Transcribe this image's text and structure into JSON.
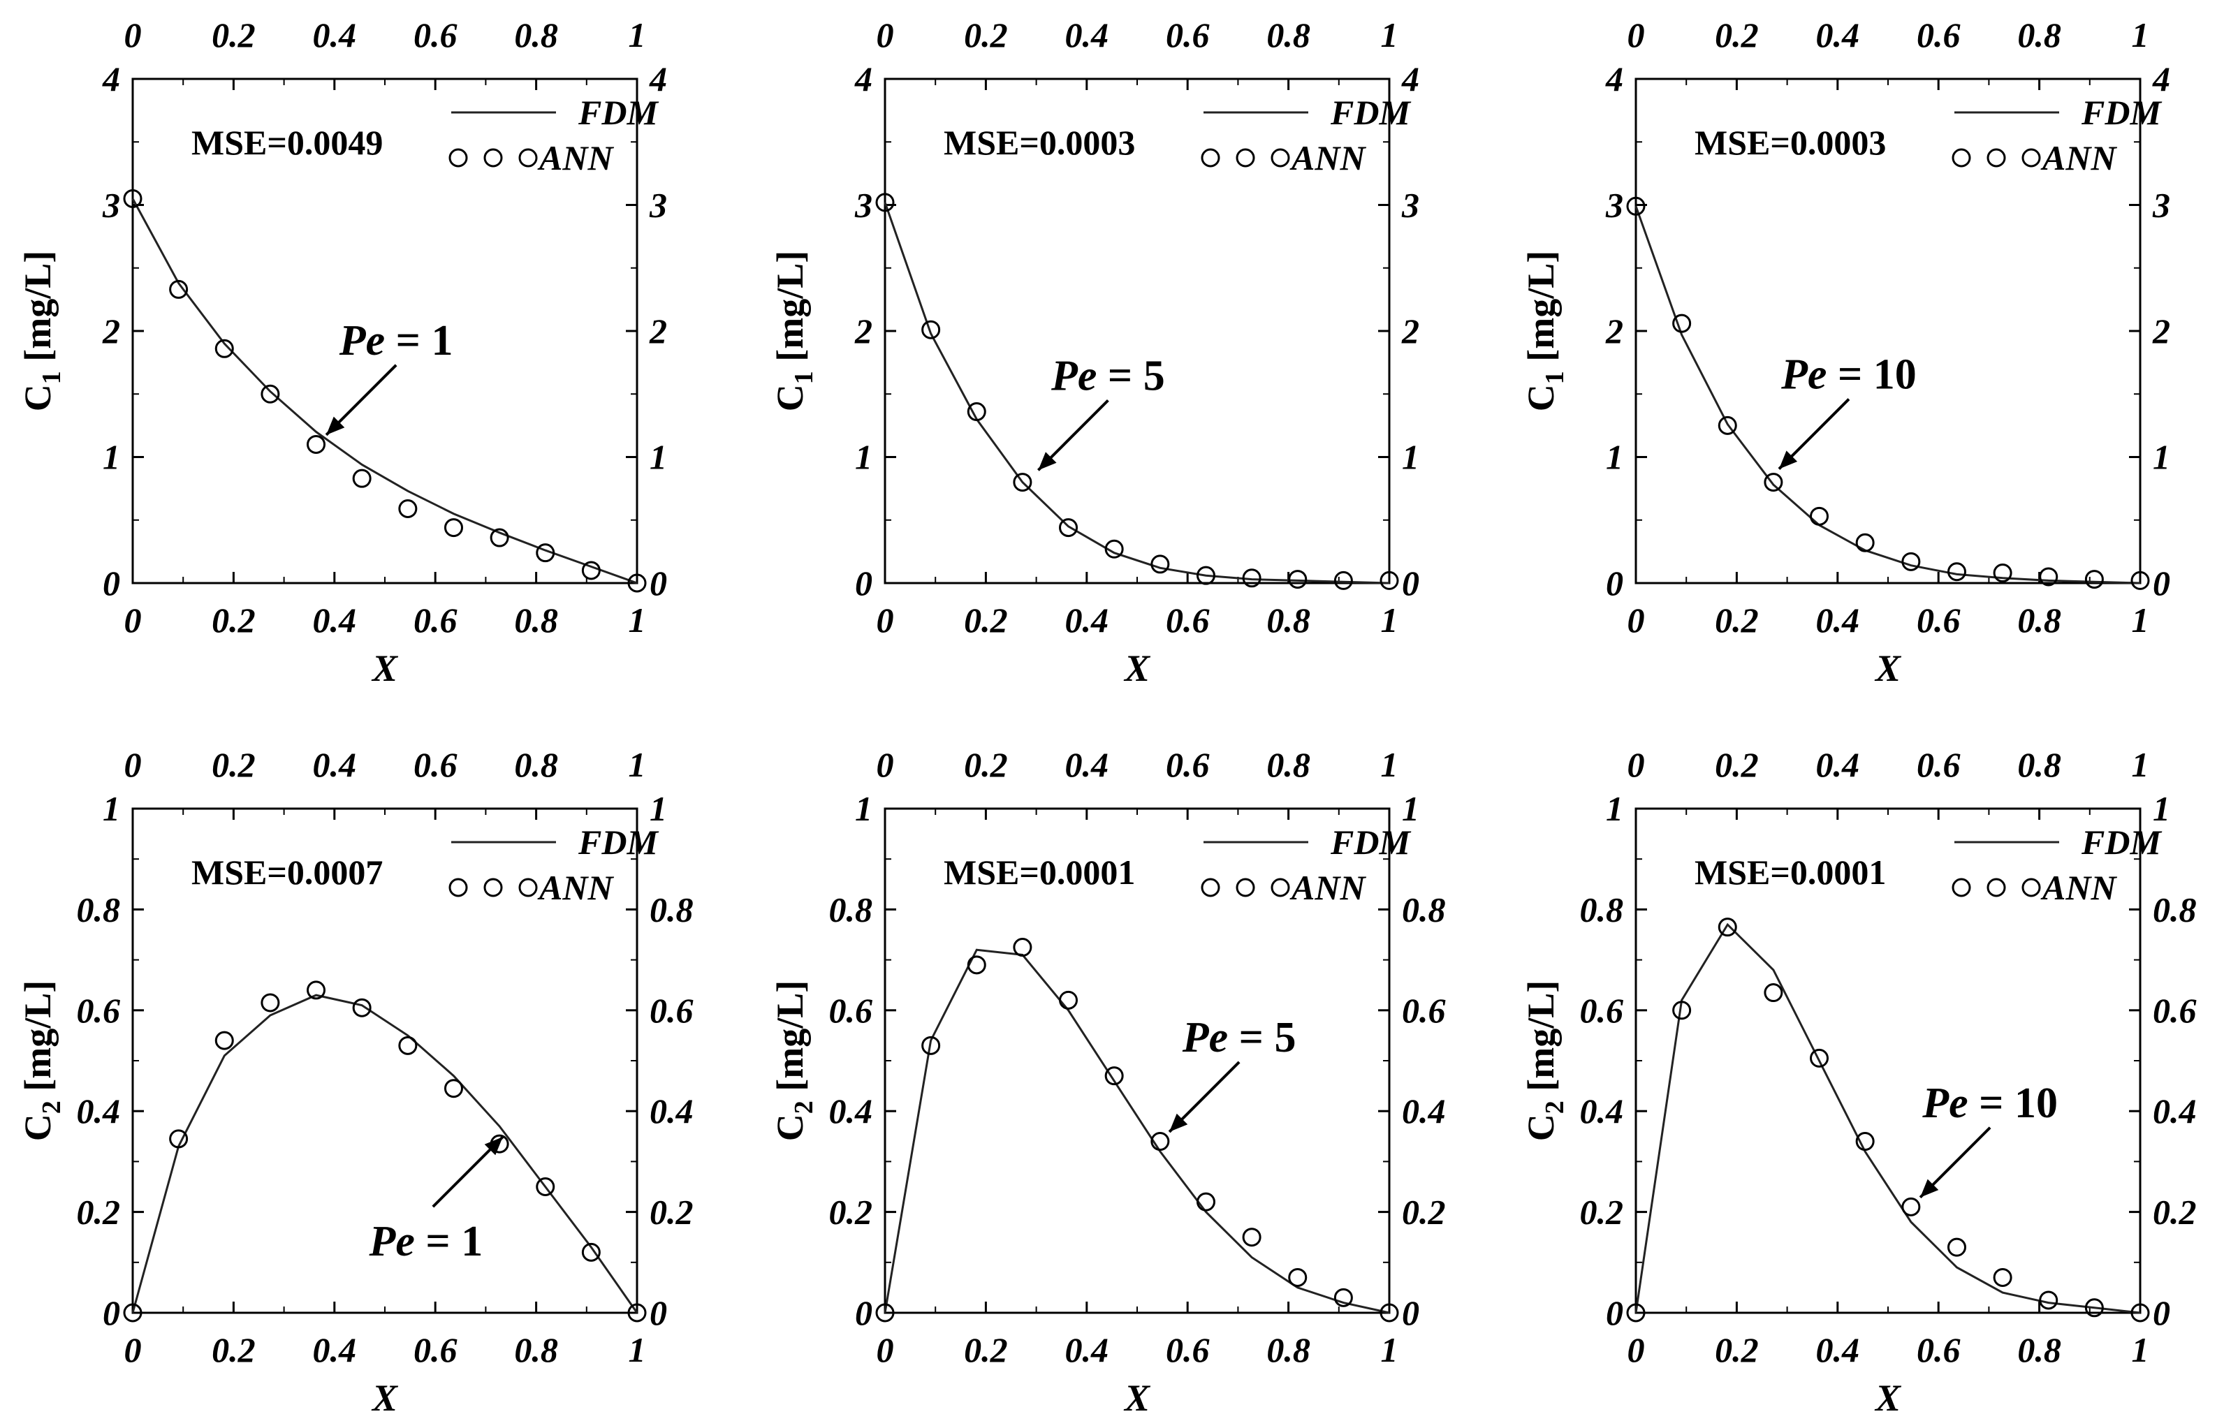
{
  "chart_data": [
    {
      "type": "line",
      "ylabel_main": "C",
      "ylabel_sub": "1",
      "ylabel_unit": " [mg/L]",
      "xlabel": "X",
      "xlim": [
        0,
        1
      ],
      "ylim": [
        0,
        4
      ],
      "xticks": [
        "0",
        "0.2",
        "0.4",
        "0.6",
        "0.8",
        "1"
      ],
      "yticks": [
        "0",
        "1",
        "2",
        "3",
        "4"
      ],
      "mse": "MSE=0.0049",
      "legend": {
        "fdm": "FDM",
        "ann": "ANN"
      },
      "annotation": {
        "pe": "Pe",
        "eq": " = 1",
        "x": 0.37,
        "y": 1.12
      },
      "series": [
        {
          "name": "FDM",
          "style": "line",
          "x": [
            0,
            0.0909,
            0.1818,
            0.2727,
            0.3636,
            0.4545,
            0.5455,
            0.6364,
            0.7273,
            0.8182,
            0.9091,
            1
          ],
          "values": [
            3.05,
            2.38,
            1.9,
            1.52,
            1.2,
            0.94,
            0.73,
            0.55,
            0.4,
            0.26,
            0.13,
            0.0
          ]
        },
        {
          "name": "ANN",
          "style": "marker",
          "x": [
            0,
            0.0909,
            0.1818,
            0.2727,
            0.3636,
            0.4545,
            0.5455,
            0.6364,
            0.7273,
            0.8182,
            0.9091,
            1
          ],
          "values": [
            3.05,
            2.33,
            1.86,
            1.5,
            1.1,
            0.83,
            0.59,
            0.44,
            0.36,
            0.24,
            0.1,
            0.0
          ]
        }
      ]
    },
    {
      "type": "line",
      "ylabel_main": "C",
      "ylabel_sub": "1",
      "ylabel_unit": " [mg/L]",
      "xlabel": "X",
      "xlim": [
        0,
        1
      ],
      "ylim": [
        0,
        4
      ],
      "xticks": [
        "0",
        "0.2",
        "0.4",
        "0.6",
        "0.8",
        "1"
      ],
      "yticks": [
        "0",
        "1",
        "2",
        "3",
        "4"
      ],
      "mse": "MSE=0.0003",
      "legend": {
        "fdm": "FDM",
        "ann": "ANN"
      },
      "annotation": {
        "pe": "Pe",
        "eq": " = 5",
        "x": 0.29,
        "y": 0.84
      },
      "series": [
        {
          "name": "FDM",
          "style": "line",
          "x": [
            0,
            0.0909,
            0.1818,
            0.2727,
            0.3636,
            0.4545,
            0.5455,
            0.6364,
            0.7273,
            0.8182,
            0.9091,
            1
          ],
          "values": [
            3.02,
            1.98,
            1.3,
            0.8,
            0.45,
            0.24,
            0.12,
            0.06,
            0.03,
            0.02,
            0.01,
            0.0
          ]
        },
        {
          "name": "ANN",
          "style": "marker",
          "x": [
            0,
            0.0909,
            0.1818,
            0.2727,
            0.3636,
            0.4545,
            0.5455,
            0.6364,
            0.7273,
            0.8182,
            0.9091,
            1
          ],
          "values": [
            3.02,
            2.01,
            1.36,
            0.8,
            0.44,
            0.27,
            0.15,
            0.06,
            0.04,
            0.03,
            0.02,
            0.02
          ]
        }
      ]
    },
    {
      "type": "line",
      "ylabel_main": "C",
      "ylabel_sub": "1",
      "ylabel_unit": " [mg/L]",
      "xlabel": "X",
      "xlim": [
        0,
        1
      ],
      "ylim": [
        0,
        4
      ],
      "xticks": [
        "0",
        "0.2",
        "0.4",
        "0.6",
        "0.8",
        "1"
      ],
      "yticks": [
        "0",
        "1",
        "2",
        "3",
        "4"
      ],
      "mse": "MSE=0.0003",
      "legend": {
        "fdm": "FDM",
        "ann": "ANN"
      },
      "annotation": {
        "pe": "Pe",
        "eq": " = 10",
        "x": 0.27,
        "y": 0.85
      },
      "series": [
        {
          "name": "FDM",
          "style": "line",
          "x": [
            0,
            0.0909,
            0.1818,
            0.2727,
            0.3636,
            0.4545,
            0.5455,
            0.6364,
            0.7273,
            0.8182,
            0.9091,
            1
          ],
          "values": [
            2.99,
            1.97,
            1.26,
            0.78,
            0.46,
            0.26,
            0.14,
            0.07,
            0.04,
            0.02,
            0.01,
            0.0
          ]
        },
        {
          "name": "ANN",
          "style": "marker",
          "x": [
            0,
            0.0909,
            0.1818,
            0.2727,
            0.3636,
            0.4545,
            0.5455,
            0.6364,
            0.7273,
            0.8182,
            0.9091,
            1
          ],
          "values": [
            2.99,
            2.06,
            1.25,
            0.8,
            0.53,
            0.32,
            0.17,
            0.09,
            0.08,
            0.05,
            0.03,
            0.02
          ]
        }
      ]
    },
    {
      "type": "line",
      "ylabel_main": "C",
      "ylabel_sub": "2",
      "ylabel_unit": " [mg/L]",
      "xlabel": "X",
      "xlim": [
        0,
        1
      ],
      "ylim": [
        0,
        1
      ],
      "xticks": [
        "0",
        "0.2",
        "0.4",
        "0.6",
        "0.8",
        "1"
      ],
      "yticks": [
        "0",
        "0.2",
        "0.4",
        "0.6",
        "0.8",
        "1"
      ],
      "mse": "MSE=0.0007",
      "legend": {
        "fdm": "FDM",
        "ann": "ANN"
      },
      "annotation": {
        "pe": "Pe",
        "eq": " = 1",
        "x": 0.72,
        "y": 0.335,
        "below": true
      },
      "series": [
        {
          "name": "FDM",
          "style": "line",
          "x": [
            0,
            0.0909,
            0.1818,
            0.2727,
            0.3636,
            0.4545,
            0.5455,
            0.6364,
            0.7273,
            0.8182,
            0.9091,
            1
          ],
          "values": [
            0.0,
            0.33,
            0.51,
            0.59,
            0.63,
            0.61,
            0.55,
            0.47,
            0.37,
            0.25,
            0.13,
            0.0
          ]
        },
        {
          "name": "ANN",
          "style": "marker",
          "x": [
            0,
            0.0909,
            0.1818,
            0.2727,
            0.3636,
            0.4545,
            0.5455,
            0.6364,
            0.7273,
            0.8182,
            0.9091,
            1
          ],
          "values": [
            0.0,
            0.345,
            0.54,
            0.615,
            0.64,
            0.605,
            0.53,
            0.445,
            0.335,
            0.25,
            0.12,
            0.0
          ]
        }
      ]
    },
    {
      "type": "line",
      "ylabel_main": "C",
      "ylabel_sub": "2",
      "ylabel_unit": " [mg/L]",
      "xlabel": "X",
      "xlim": [
        0,
        1
      ],
      "ylim": [
        0,
        1
      ],
      "xticks": [
        "0",
        "0.2",
        "0.4",
        "0.6",
        "0.8",
        "1"
      ],
      "yticks": [
        "0",
        "0.2",
        "0.4",
        "0.6",
        "0.8",
        "1"
      ],
      "mse": "MSE=0.0001",
      "legend": {
        "fdm": "FDM",
        "ann": "ANN"
      },
      "annotation": {
        "pe": "Pe",
        "eq": " = 5",
        "x": 0.55,
        "y": 0.345
      },
      "series": [
        {
          "name": "FDM",
          "style": "line",
          "x": [
            0,
            0.0909,
            0.1818,
            0.2727,
            0.3636,
            0.4545,
            0.5455,
            0.6364,
            0.7273,
            0.8182,
            0.9091,
            1
          ],
          "values": [
            0.0,
            0.54,
            0.72,
            0.71,
            0.6,
            0.46,
            0.32,
            0.2,
            0.11,
            0.05,
            0.02,
            0.0
          ]
        },
        {
          "name": "ANN",
          "style": "marker",
          "x": [
            0,
            0.0909,
            0.1818,
            0.2727,
            0.3636,
            0.4545,
            0.5455,
            0.6364,
            0.7273,
            0.8182,
            0.9091,
            1
          ],
          "values": [
            0.0,
            0.53,
            0.69,
            0.725,
            0.62,
            0.47,
            0.34,
            0.22,
            0.15,
            0.07,
            0.03,
            0.0
          ]
        }
      ]
    },
    {
      "type": "line",
      "ylabel_main": "C",
      "ylabel_sub": "2",
      "ylabel_unit": " [mg/L]",
      "xlabel": "X",
      "xlim": [
        0,
        1
      ],
      "ylim": [
        0,
        1
      ],
      "xticks": [
        "0",
        "0.2",
        "0.4",
        "0.6",
        "0.8",
        "1"
      ],
      "yticks": [
        "0",
        "0.2",
        "0.4",
        "0.6",
        "0.8",
        "1"
      ],
      "mse": "MSE=0.0001",
      "legend": {
        "fdm": "FDM",
        "ann": "ANN"
      },
      "annotation": {
        "pe": "Pe",
        "eq": " = 10",
        "x": 0.55,
        "y": 0.215
      },
      "series": [
        {
          "name": "FDM",
          "style": "line",
          "x": [
            0,
            0.0909,
            0.1818,
            0.2727,
            0.3636,
            0.4545,
            0.5455,
            0.6364,
            0.7273,
            0.8182,
            0.9091,
            1
          ],
          "values": [
            0.0,
            0.62,
            0.77,
            0.68,
            0.5,
            0.32,
            0.18,
            0.09,
            0.04,
            0.02,
            0.01,
            0.0
          ]
        },
        {
          "name": "ANN",
          "style": "marker",
          "x": [
            0,
            0.0909,
            0.1818,
            0.2727,
            0.3636,
            0.4545,
            0.5455,
            0.6364,
            0.7273,
            0.8182,
            0.9091,
            1
          ],
          "values": [
            0.0,
            0.6,
            0.765,
            0.635,
            0.505,
            0.34,
            0.21,
            0.13,
            0.07,
            0.025,
            0.01,
            0.0
          ]
        }
      ]
    }
  ]
}
